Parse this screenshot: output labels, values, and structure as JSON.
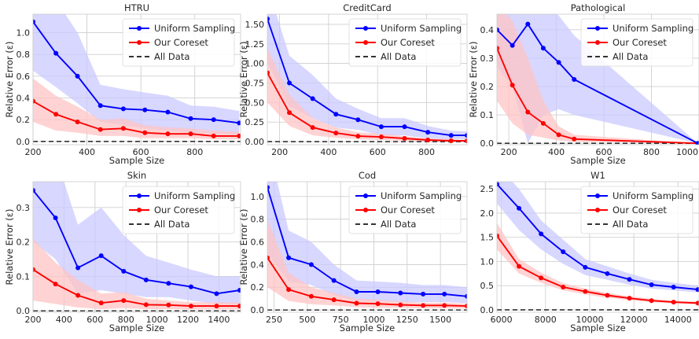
{
  "colors": {
    "uniform": "#0000ff",
    "coreset": "#ff0000",
    "alldata": "#333333",
    "uniform_band": "#c9c9ff",
    "coreset_band": "#ffc4c4",
    "grid": "#cfcfcf"
  },
  "chart_data": [
    {
      "type": "line",
      "title": "HTRU",
      "xlabel": "Sample Size",
      "ylabel": "Relative Error (ε)",
      "xlim": [
        200,
        970
      ],
      "ylim": [
        -0.03,
        1.17
      ],
      "xticks": [
        200,
        400,
        600,
        800
      ],
      "xtick_labels": [
        "200",
        "400",
        "600",
        "800"
      ],
      "yticks": [
        0,
        0.2,
        0.4,
        0.6,
        0.8,
        1.0
      ],
      "ytick_labels": [
        "0.0",
        "0.2",
        "0.4",
        "0.6",
        "0.8",
        "1.0"
      ],
      "grid": true,
      "legend": "top-right",
      "x": [
        200,
        285,
        365,
        450,
        535,
        615,
        700,
        785,
        870,
        965
      ],
      "series": [
        {
          "name": "Uniform Sampling",
          "values": [
            1.1,
            0.81,
            0.6,
            0.33,
            0.3,
            0.29,
            0.27,
            0.21,
            0.2,
            0.17
          ],
          "lower": [
            0.65,
            0.5,
            0.35,
            0.18,
            0.15,
            0.12,
            0.1,
            0.08,
            0.07,
            0.06
          ],
          "upper": [
            1.5,
            1.3,
            1.0,
            0.52,
            0.48,
            0.45,
            0.42,
            0.33,
            0.32,
            0.28
          ]
        },
        {
          "name": "Our Coreset",
          "values": [
            0.37,
            0.25,
            0.18,
            0.11,
            0.12,
            0.08,
            0.07,
            0.07,
            0.05,
            0.05
          ],
          "lower": [
            0.18,
            0.1,
            0.08,
            0.05,
            0.05,
            0.03,
            0.03,
            0.03,
            0.02,
            0.02
          ],
          "upper": [
            0.58,
            0.42,
            0.32,
            0.2,
            0.21,
            0.15,
            0.13,
            0.12,
            0.1,
            0.09
          ]
        },
        {
          "name": "All Data",
          "values": [
            0,
            0,
            0,
            0,
            0,
            0,
            0,
            0,
            0,
            0
          ]
        }
      ]
    },
    {
      "type": "line",
      "title": "CreditCard",
      "xlabel": "",
      "ylabel": "Relative Error (ε)",
      "xlim": [
        150,
        965
      ],
      "ylim": [
        -0.04,
        1.63
      ],
      "xticks": [
        200,
        400,
        600,
        800
      ],
      "xtick_labels": [
        "200",
        "400",
        "600",
        "800"
      ],
      "yticks": [
        0,
        0.25,
        0.5,
        0.75,
        1.0,
        1.25,
        1.5
      ],
      "ytick_labels": [
        "0.00",
        "0.25",
        "0.50",
        "0.75",
        "1.00",
        "1.25",
        "1.50"
      ],
      "grid": true,
      "legend": "top-right",
      "x": [
        150,
        240,
        335,
        430,
        520,
        615,
        710,
        805,
        900,
        965
      ],
      "series": [
        {
          "name": "Uniform Sampling",
          "values": [
            1.57,
            0.75,
            0.55,
            0.35,
            0.28,
            0.19,
            0.19,
            0.12,
            0.08,
            0.08
          ],
          "lower": [
            1.0,
            0.45,
            0.3,
            0.18,
            0.15,
            0.08,
            0.08,
            0.04,
            0.03,
            0.03
          ],
          "upper": [
            2.0,
            1.1,
            0.85,
            0.55,
            0.42,
            0.3,
            0.3,
            0.2,
            0.14,
            0.13
          ]
        },
        {
          "name": "Our Coreset",
          "values": [
            0.88,
            0.37,
            0.18,
            0.11,
            0.07,
            0.06,
            0.04,
            0.02,
            0.01,
            0.01
          ],
          "lower": [
            0.5,
            0.2,
            0.08,
            0.05,
            0.03,
            0.02,
            0.01,
            0.0,
            0.0,
            0.0
          ],
          "upper": [
            1.2,
            0.6,
            0.3,
            0.18,
            0.12,
            0.1,
            0.07,
            0.04,
            0.03,
            0.02
          ]
        },
        {
          "name": "All Data",
          "values": [
            0,
            0,
            0,
            0,
            0,
            0,
            0,
            0,
            0,
            0
          ]
        }
      ]
    },
    {
      "type": "line",
      "title": "Pathological",
      "xlabel": "Sample Size",
      "ylabel": "Relative Error (ε)",
      "xlim": [
        150,
        1000
      ],
      "ylim": [
        -0.005,
        0.455
      ],
      "xticks": [
        200,
        400,
        600,
        800,
        1000
      ],
      "xtick_labels": [
        "200",
        "400",
        "600",
        "800",
        "1000"
      ],
      "yticks": [
        0,
        0.1,
        0.2,
        0.3,
        0.4
      ],
      "ytick_labels": [
        "0.0",
        "0.1",
        "0.2",
        "0.3",
        "0.4"
      ],
      "grid": true,
      "legend": "top-right",
      "x": [
        150,
        215,
        280,
        345,
        410,
        475,
        995
      ],
      "series": [
        {
          "name": "Uniform Sampling",
          "values": [
            0.4,
            0.345,
            0.42,
            0.335,
            0.285,
            0.225,
            0.0
          ],
          "lower": [
            0.27,
            0.2,
            0.0,
            0.1,
            0.12,
            0.1,
            0.0
          ],
          "upper": [
            0.5,
            0.5,
            0.55,
            0.5,
            0.45,
            0.38,
            0.0
          ]
        },
        {
          "name": "Our Coreset",
          "values": [
            0.335,
            0.205,
            0.11,
            0.07,
            0.03,
            0.015,
            0.0
          ],
          "lower": [
            0.15,
            0.07,
            0.03,
            0.02,
            0.01,
            0.005,
            0.0
          ],
          "upper": [
            0.5,
            0.43,
            0.3,
            0.15,
            0.06,
            0.03,
            0.0
          ]
        },
        {
          "name": "All Data",
          "values": [
            0,
            0,
            0,
            0,
            0,
            0,
            0
          ]
        }
      ]
    },
    {
      "type": "line",
      "title": "Skin",
      "xlabel": "Sample Size",
      "ylabel": "Relative Error (ε)",
      "xlim": [
        200,
        1540
      ],
      "ylim": [
        -0.004,
        0.375
      ],
      "xticks": [
        200,
        400,
        600,
        800,
        1000,
        1200,
        1400
      ],
      "xtick_labels": [
        "200",
        "400",
        "600",
        "800",
        "1000",
        "1200",
        "1400"
      ],
      "yticks": [
        0,
        0.1,
        0.2,
        0.3
      ],
      "ytick_labels": [
        "0.0",
        "0.1",
        "0.2",
        "0.3"
      ],
      "grid": true,
      "legend": "top-right",
      "x": [
        200,
        345,
        490,
        640,
        785,
        930,
        1075,
        1220,
        1385,
        1535
      ],
      "series": [
        {
          "name": "Uniform Sampling",
          "values": [
            0.35,
            0.27,
            0.125,
            0.16,
            0.115,
            0.09,
            0.08,
            0.07,
            0.05,
            0.06
          ],
          "lower": [
            0.2,
            0.15,
            0.05,
            0.06,
            0.05,
            0.04,
            0.04,
            0.03,
            0.02,
            0.02
          ],
          "upper": [
            0.5,
            0.45,
            0.25,
            0.3,
            0.22,
            0.16,
            0.14,
            0.12,
            0.1,
            0.1
          ]
        },
        {
          "name": "Our Coreset",
          "values": [
            0.12,
            0.078,
            0.045,
            0.023,
            0.03,
            0.018,
            0.017,
            0.014,
            0.014,
            0.014
          ],
          "lower": [
            0.03,
            0.02,
            0.01,
            0.005,
            0.008,
            0.005,
            0.005,
            0.004,
            0.004,
            0.004
          ],
          "upper": [
            0.21,
            0.14,
            0.09,
            0.05,
            0.055,
            0.035,
            0.03,
            0.025,
            0.025,
            0.024
          ]
        },
        {
          "name": "All Data",
          "values": [
            0,
            0,
            0,
            0,
            0,
            0,
            0,
            0,
            0,
            0
          ]
        }
      ]
    },
    {
      "type": "line",
      "title": "Cod",
      "xlabel": "Sample Size",
      "ylabel": "Relative Error (ε)",
      "xlim": [
        200,
        1700
      ],
      "ylim": [
        -0.02,
        1.13
      ],
      "xticks": [
        250,
        500,
        750,
        1000,
        1250,
        1500
      ],
      "xtick_labels": [
        "250",
        "500",
        "750",
        "1000",
        "1250",
        "1500"
      ],
      "yticks": [
        0,
        0.2,
        0.4,
        0.6,
        0.8,
        1.0
      ],
      "ytick_labels": [
        "0.0",
        "0.2",
        "0.4",
        "0.6",
        "0.8",
        "1.0"
      ],
      "grid": true,
      "legend": "top-right",
      "x": [
        200,
        360,
        530,
        700,
        870,
        1030,
        1200,
        1370,
        1530,
        1700
      ],
      "series": [
        {
          "name": "Uniform Sampling",
          "values": [
            1.08,
            0.46,
            0.4,
            0.26,
            0.16,
            0.16,
            0.15,
            0.14,
            0.14,
            0.12
          ],
          "lower": [
            0.5,
            0.25,
            0.22,
            0.13,
            0.08,
            0.08,
            0.07,
            0.07,
            0.07,
            0.06
          ],
          "upper": [
            1.5,
            0.7,
            0.6,
            0.4,
            0.26,
            0.25,
            0.24,
            0.22,
            0.22,
            0.2
          ]
        },
        {
          "name": "Our Coreset",
          "values": [
            0.46,
            0.18,
            0.12,
            0.09,
            0.06,
            0.055,
            0.045,
            0.04,
            0.04,
            0.035
          ],
          "lower": [
            0.2,
            0.08,
            0.05,
            0.04,
            0.025,
            0.02,
            0.02,
            0.015,
            0.015,
            0.012
          ],
          "upper": [
            0.8,
            0.33,
            0.2,
            0.15,
            0.1,
            0.09,
            0.075,
            0.065,
            0.065,
            0.055
          ]
        },
        {
          "name": "All Data",
          "values": [
            0,
            0,
            0,
            0,
            0,
            0,
            0,
            0,
            0,
            0
          ]
        }
      ]
    },
    {
      "type": "line",
      "title": "W1",
      "xlabel": "Sample Size",
      "ylabel": "",
      "xlim": [
        5800,
        14950
      ],
      "ylim": [
        -0.05,
        2.65
      ],
      "xticks": [
        6000,
        8000,
        10000,
        12000,
        14000
      ],
      "xtick_labels": [
        "6000",
        "8000",
        "10000",
        "12000",
        "14000"
      ],
      "yticks": [
        0,
        0.5,
        1.0,
        1.5,
        2.0,
        2.5
      ],
      "ytick_labels": [
        "0.0",
        "0.5",
        "1.0",
        "1.5",
        "2.0",
        "2.5"
      ],
      "grid": true,
      "legend": "top-right",
      "x": [
        5800,
        6800,
        7800,
        8800,
        9800,
        10800,
        11800,
        12800,
        13800,
        14900
      ],
      "series": [
        {
          "name": "Uniform Sampling",
          "values": [
            2.6,
            2.1,
            1.57,
            1.2,
            0.88,
            0.75,
            0.63,
            0.52,
            0.47,
            0.42
          ],
          "lower": [
            2.2,
            1.65,
            1.25,
            0.95,
            0.72,
            0.62,
            0.52,
            0.44,
            0.4,
            0.36
          ],
          "upper": [
            3.0,
            2.5,
            1.85,
            1.45,
            1.05,
            0.9,
            0.75,
            0.62,
            0.56,
            0.5
          ]
        },
        {
          "name": "Our Coreset",
          "values": [
            1.53,
            0.9,
            0.66,
            0.47,
            0.38,
            0.3,
            0.24,
            0.19,
            0.16,
            0.14
          ],
          "lower": [
            1.25,
            0.75,
            0.56,
            0.4,
            0.32,
            0.25,
            0.2,
            0.16,
            0.13,
            0.11
          ],
          "upper": [
            1.8,
            1.05,
            0.77,
            0.55,
            0.44,
            0.35,
            0.28,
            0.23,
            0.19,
            0.17
          ]
        },
        {
          "name": "All Data",
          "values": [
            0,
            0,
            0,
            0,
            0,
            0,
            0,
            0,
            0,
            0
          ]
        }
      ]
    }
  ]
}
